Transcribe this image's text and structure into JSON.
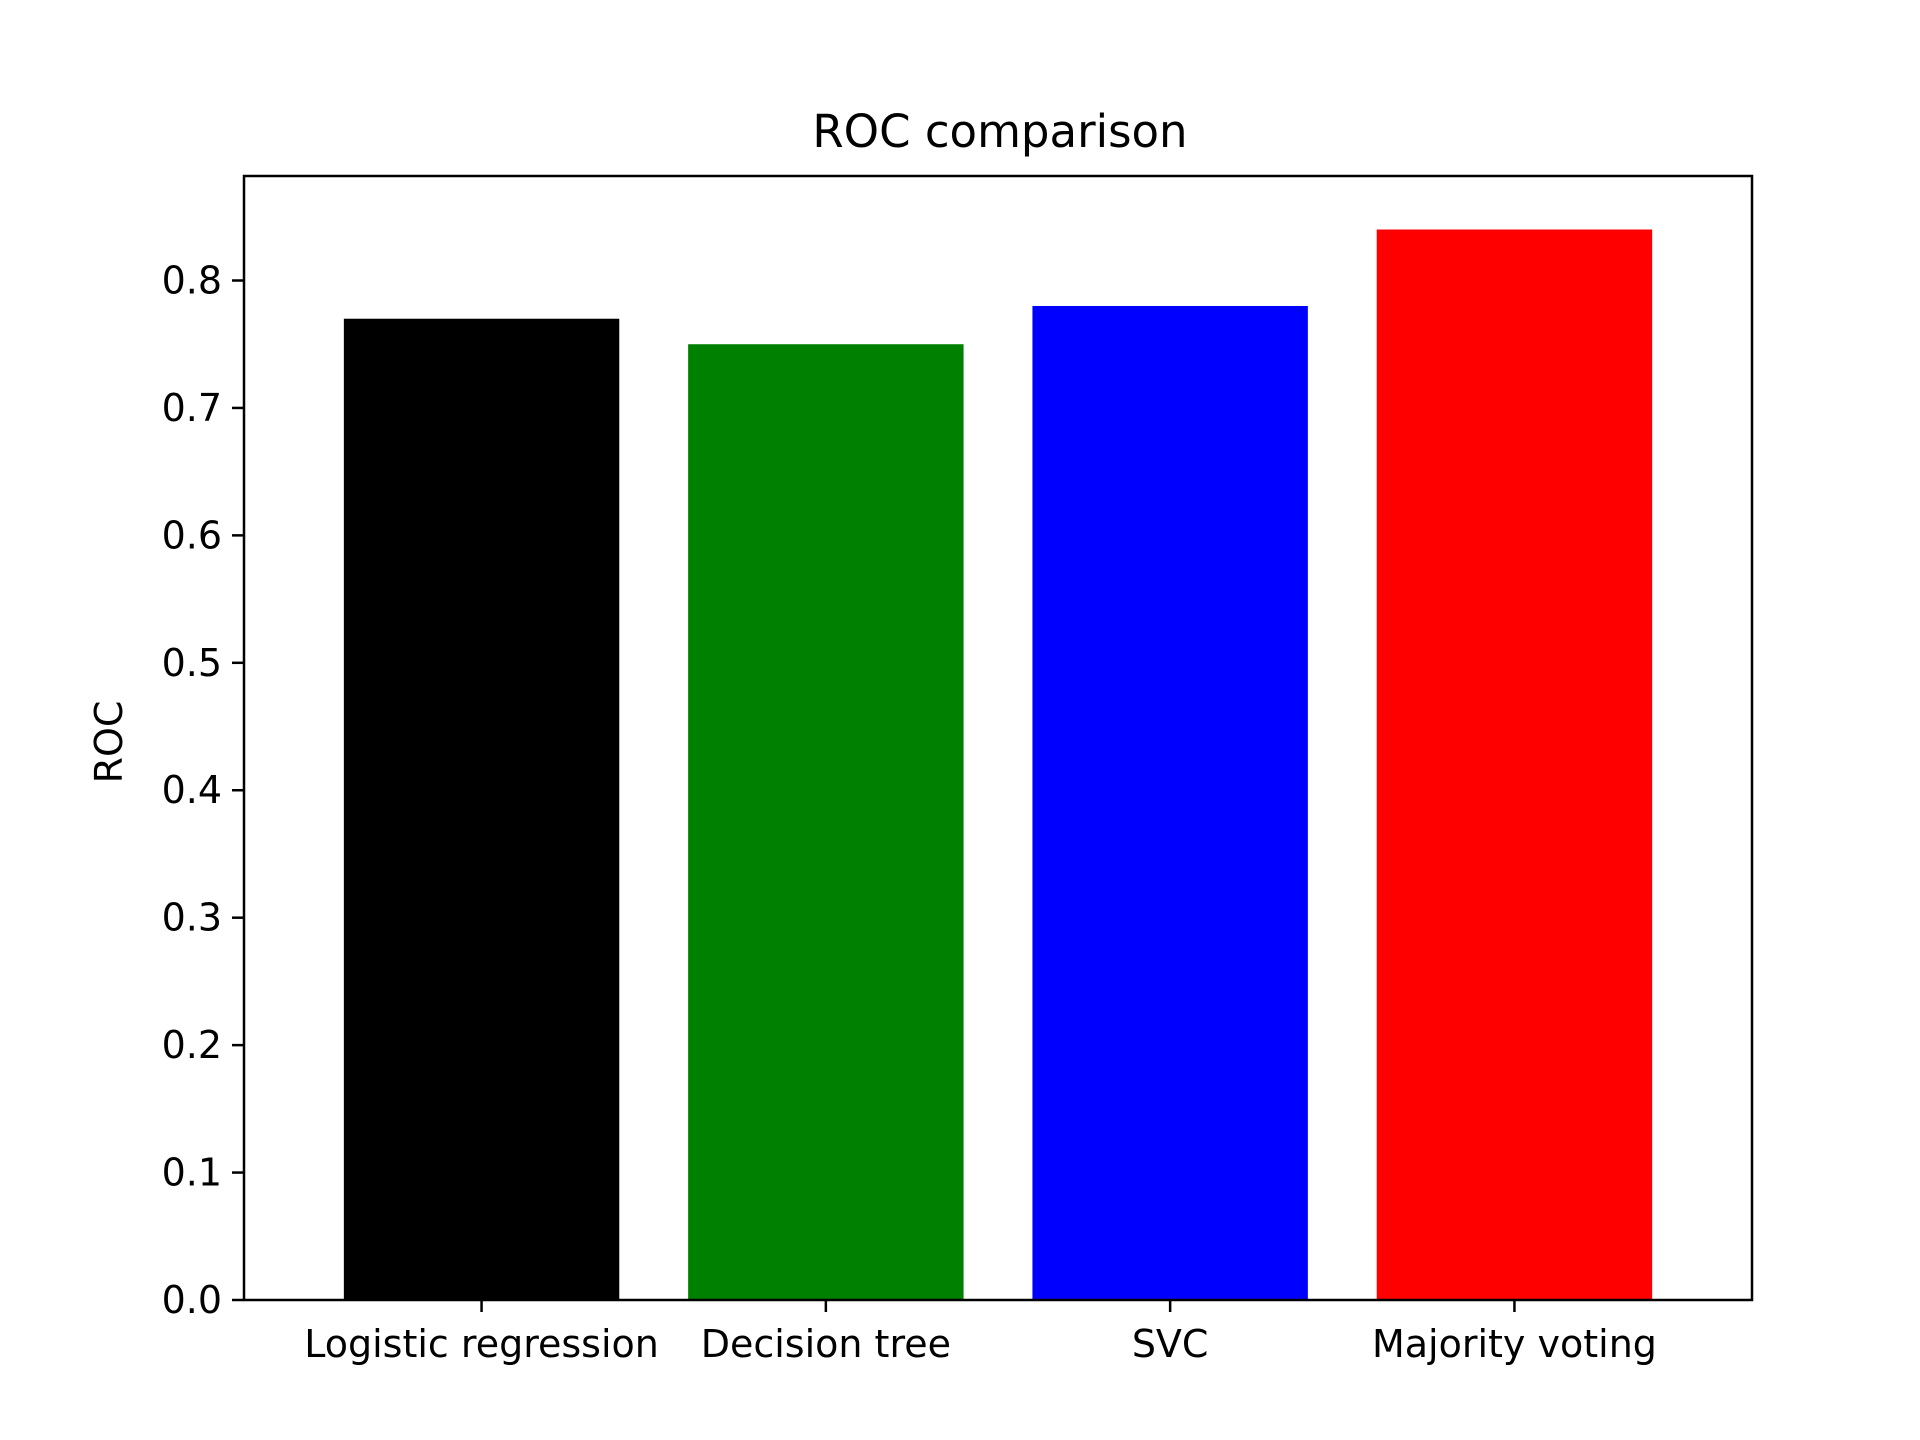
{
  "chart_data": {
    "type": "bar",
    "title": "ROC comparison",
    "xlabel": "",
    "ylabel": "ROC",
    "categories": [
      "Logistic regression",
      "Decision tree",
      "SVC",
      "Majority voting"
    ],
    "values": [
      0.77,
      0.75,
      0.78,
      0.84
    ],
    "colors": [
      "#000000",
      "#008000",
      "#0000ff",
      "#ff0000"
    ],
    "ylim": [
      0,
      0.882
    ],
    "yticks": [
      "0.0",
      "0.1",
      "0.2",
      "0.3",
      "0.4",
      "0.5",
      "0.6",
      "0.7",
      "0.8"
    ],
    "grid": false,
    "legend": "none"
  }
}
